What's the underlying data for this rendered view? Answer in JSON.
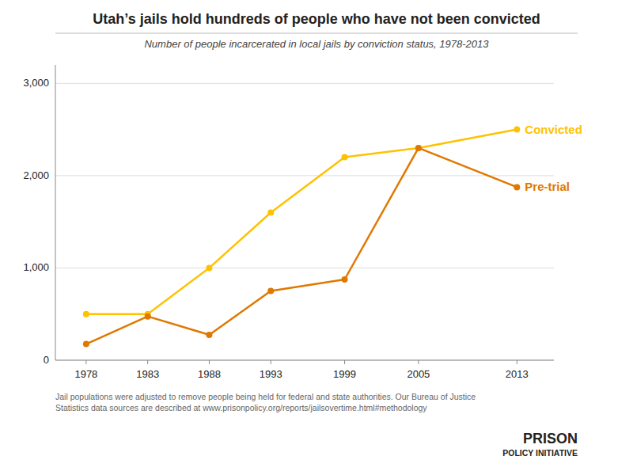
{
  "chart_data": {
    "type": "line",
    "title": "Utah’s jails hold hundreds of people who have not been convicted",
    "subtitle": "Number of people incarcerated in local jails by conviction status, 1978-2013",
    "x": [
      1978,
      1983,
      1988,
      1993,
      1999,
      2005,
      2013
    ],
    "series": [
      {
        "name": "Convicted",
        "color": "#FFC200",
        "marker": "circle",
        "values": [
          500,
          500,
          1000,
          1600,
          2200,
          2300,
          2500
        ]
      },
      {
        "name": "Pre-trial",
        "color": "#E07800",
        "marker": "circle",
        "values": [
          175,
          475,
          275,
          750,
          875,
          2300,
          1875
        ]
      }
    ],
    "xlim": [
      1975.5,
      2016
    ],
    "xticks": [
      1978,
      1983,
      1988,
      1993,
      1999,
      2005,
      2013
    ],
    "ylim": [
      0,
      3200
    ],
    "yticks": [
      0,
      {
        "value": 1000,
        "label": "1,000"
      },
      {
        "value": 2000,
        "label": "2,000"
      },
      {
        "value": 3000,
        "label": "3,000"
      }
    ],
    "grid": true,
    "footnote": "Jail populations were adjusted to remove people being held for federal and state authorities. Our Bureau of Justice\nStatistics data sources are described at www.prisonpolicy.org/reports/jailsovertime.html#methodology",
    "annotations": [
      "PRISON",
      "POLICY INITIATIVE"
    ]
  }
}
